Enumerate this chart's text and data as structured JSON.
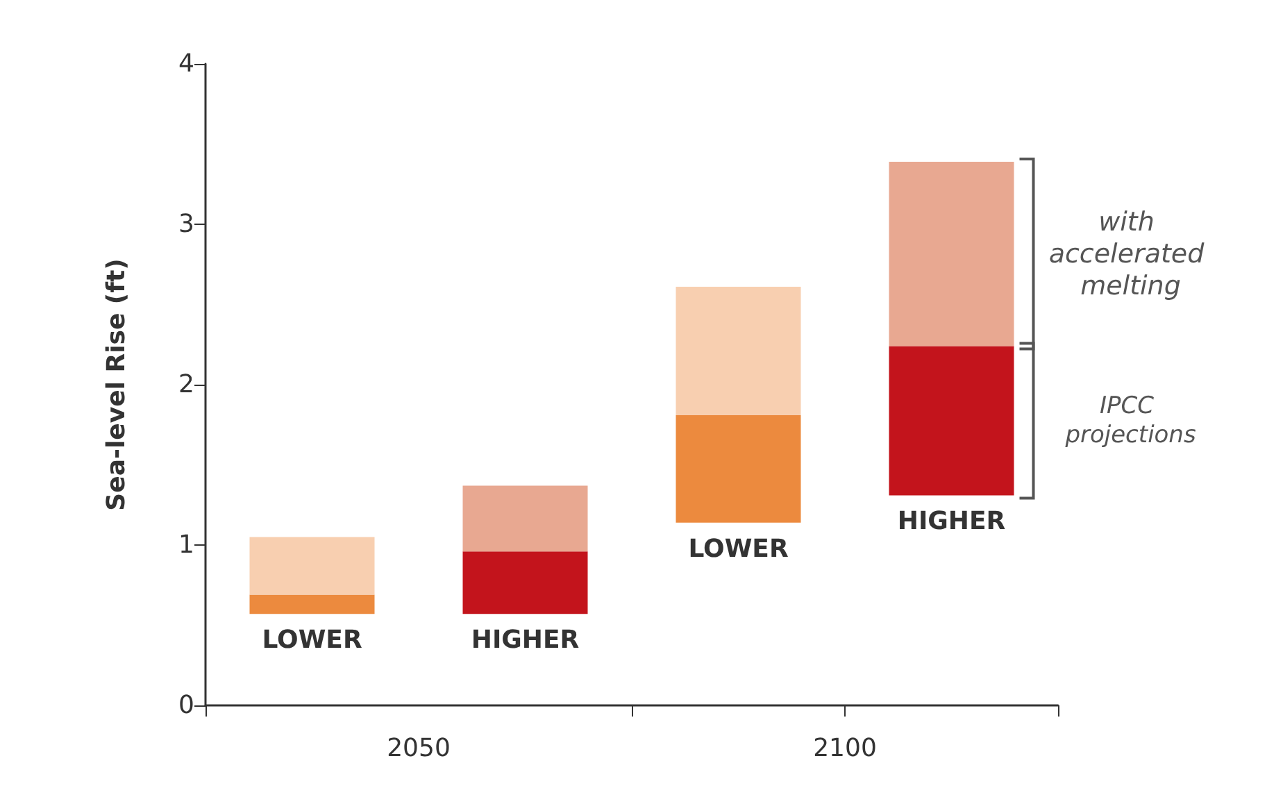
{
  "chart_data": {
    "type": "bar",
    "ylabel": "Sea-level Rise (ft)",
    "categories": [
      "LOWER",
      "HIGHER",
      "LOWER",
      "HIGHER"
    ],
    "series": [
      {
        "colors": [
          "#ec8a3e",
          "#c3141c",
          "#ec8a3e",
          "#c3141c"
        ],
        "base": [
          0.57,
          0.57,
          1.14,
          1.31
        ],
        "values": [
          0.12,
          0.39,
          0.67,
          0.93
        ]
      },
      {
        "colors": [
          "#f8cfb0",
          "#e8a891",
          "#f8cfb0",
          "#e8a891"
        ],
        "base": [
          0.69,
          0.96,
          1.81,
          2.24
        ],
        "values": [
          0.36,
          0.41,
          0.8,
          1.15
        ]
      }
    ],
    "ylim": [
      0,
      4
    ],
    "yticks": [
      0,
      1,
      2,
      3,
      4
    ],
    "grid": false,
    "annotations": [
      "2050",
      "2100",
      "with accelerated melting",
      "IPCC projections"
    ]
  }
}
